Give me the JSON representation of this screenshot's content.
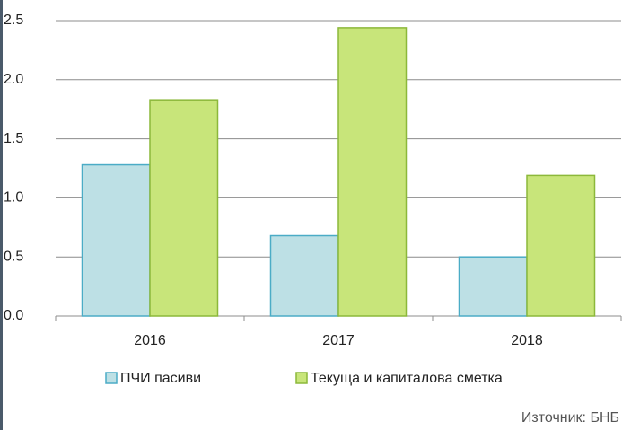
{
  "chart_data": {
    "type": "bar",
    "categories": [
      "2016",
      "2017",
      "2018"
    ],
    "series": [
      {
        "name": "ПЧИ пасиви",
        "color": "#bde0e5",
        "stroke": "#4bacc6",
        "values": [
          1.28,
          0.68,
          0.5
        ]
      },
      {
        "name": "Текуща и капиталова сметка",
        "color": "#c8e57a",
        "stroke": "#8cb83a",
        "values": [
          1.83,
          2.44,
          1.19
        ]
      }
    ],
    "ylim": [
      0,
      2.5
    ],
    "yticks": [
      {
        "value": 0,
        "label": "0.0"
      },
      0.5,
      {
        "value": 1,
        "label": "1.0"
      },
      1.5,
      {
        "value": 2,
        "label": "2.0"
      },
      2.5
    ],
    "grid": true,
    "legend": "bottom",
    "source": "Източник: БНБ"
  }
}
